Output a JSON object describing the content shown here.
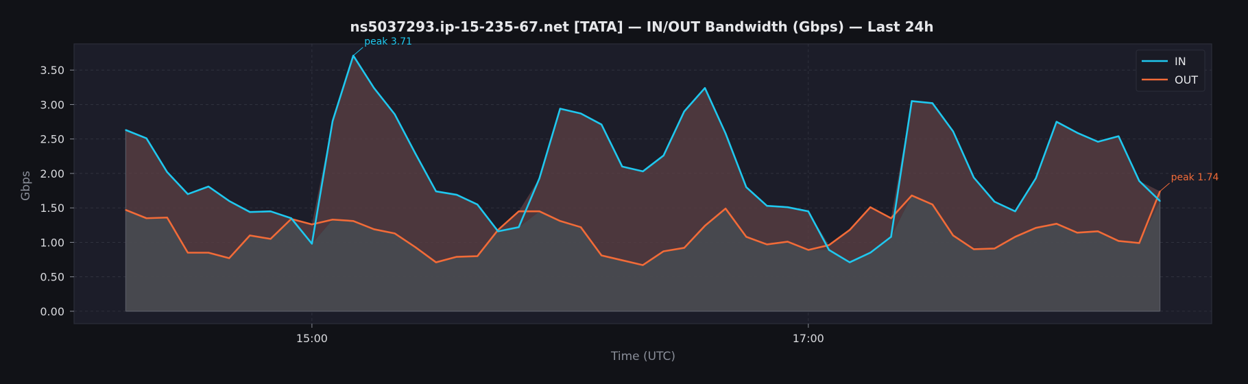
{
  "chart_data": {
    "type": "line",
    "title": "ns5037293.ip-15-235-67.net [TATA] — IN/OUT Bandwidth (Gbps) — Last 24h",
    "xlabel": "Time (UTC)",
    "ylabel": "Gbps",
    "x_start": "14:15",
    "x_step_minutes": 5,
    "x_ticks": [
      "15:00",
      "17:00"
    ],
    "y_ticks": [
      "0.00",
      "0.50",
      "1.00",
      "1.50",
      "2.00",
      "2.50",
      "3.00",
      "3.50"
    ],
    "ylim": [
      -0.18,
      3.88
    ],
    "grid": true,
    "legend_position": "top-right",
    "series": [
      {
        "name": "IN",
        "color": "#1fc8ef",
        "values": [
          2.63,
          2.51,
          2.02,
          1.7,
          1.81,
          1.6,
          1.44,
          1.45,
          1.35,
          0.98,
          2.76,
          3.71,
          3.24,
          2.86,
          2.29,
          1.74,
          1.69,
          1.55,
          1.16,
          1.22,
          1.93,
          2.94,
          2.87,
          2.71,
          2.1,
          2.03,
          2.26,
          2.9,
          3.24,
          2.58,
          1.8,
          1.53,
          1.51,
          1.45,
          0.89,
          0.71,
          0.85,
          1.08,
          3.05,
          3.02,
          2.61,
          1.94,
          1.59,
          1.45,
          1.93,
          2.75,
          2.59,
          2.46,
          2.54,
          1.89,
          1.6
        ]
      },
      {
        "name": "OUT",
        "color": "#f26b38",
        "values": [
          1.47,
          1.35,
          1.36,
          0.85,
          0.85,
          0.77,
          1.1,
          1.05,
          1.34,
          1.26,
          1.33,
          1.31,
          1.19,
          1.13,
          0.93,
          0.71,
          0.79,
          0.8,
          1.18,
          1.45,
          1.45,
          1.31,
          1.22,
          0.81,
          0.74,
          0.67,
          0.87,
          0.92,
          1.24,
          1.49,
          1.08,
          0.97,
          1.01,
          0.89,
          0.96,
          1.18,
          1.51,
          1.35,
          1.68,
          1.55,
          1.1,
          0.9,
          0.91,
          1.08,
          1.21,
          1.27,
          1.14,
          1.16,
          1.02,
          0.99,
          1.74
        ]
      }
    ],
    "annotations": [
      {
        "series": "IN",
        "index": 11,
        "text": "peak 3.71"
      },
      {
        "series": "OUT",
        "index": 50,
        "text": "peak 1.74"
      }
    ]
  }
}
